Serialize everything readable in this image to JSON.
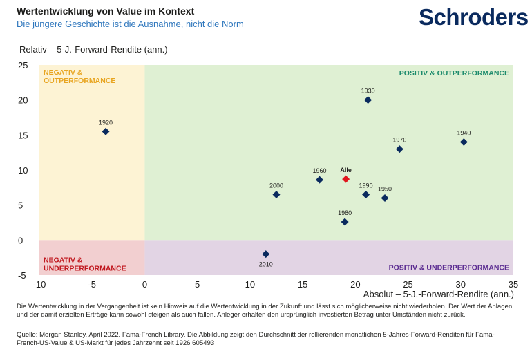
{
  "header": {
    "title": "Wertentwicklung von Value im Kontext",
    "subtitle": "Die jüngere Geschichte ist die Ausnahme, nicht die Norm",
    "brand": "Schroders"
  },
  "chart_data": {
    "type": "scatter",
    "xlabel": "Absolut – 5-J.-Forward-Rendite (ann.)",
    "ylabel": "Relativ – 5-J.-Forward-Rendite (ann.)",
    "xlim": [
      -10,
      35
    ],
    "ylim": [
      -5,
      25
    ],
    "xticks": [
      "-10",
      "-5",
      "0",
      "5",
      "10",
      "15",
      "20",
      "25",
      "30",
      "35"
    ],
    "yticks": [
      "25",
      "20",
      "15",
      "10",
      "5",
      "0",
      "-5"
    ],
    "grid": false,
    "quadrants": {
      "top_left": {
        "lines": [
          "NEGATIV &",
          "OUTPERFORMANCE"
        ],
        "fill": "#fdf3d4",
        "text_color": "#e8a521"
      },
      "top_right": {
        "lines": [
          "POSITIV & OUTPERFORMANCE"
        ],
        "fill": "#dff0d3",
        "text_color": "#1b8a6b"
      },
      "bottom_left": {
        "lines": [
          "NEGATIV &",
          "UNDERPERFORMANCE"
        ],
        "fill": "#f2cfd0",
        "text_color": "#c0161d"
      },
      "bottom_right": {
        "lines": [
          "POSITIV & UNDERPERFORMANCE"
        ],
        "fill": "#e2d4e4",
        "text_color": "#5b2c91"
      }
    },
    "points": [
      {
        "label": "1920",
        "x": -3.7,
        "y": 15.5,
        "color": "#0a2a5e"
      },
      {
        "label": "1930",
        "x": 21.2,
        "y": 20.0,
        "color": "#0a2a5e"
      },
      {
        "label": "1940",
        "x": 30.3,
        "y": 14.0,
        "color": "#0a2a5e"
      },
      {
        "label": "1950",
        "x": 22.8,
        "y": 6.0,
        "color": "#0a2a5e"
      },
      {
        "label": "1960",
        "x": 16.6,
        "y": 8.6,
        "color": "#0a2a5e"
      },
      {
        "label": "1970",
        "x": 24.2,
        "y": 13.0,
        "color": "#0a2a5e"
      },
      {
        "label": "1980",
        "x": 19.0,
        "y": 2.6,
        "color": "#0a2a5e"
      },
      {
        "label": "1990",
        "x": 21.0,
        "y": 6.5,
        "color": "#0a2a5e"
      },
      {
        "label": "2000",
        "x": 12.5,
        "y": 6.5,
        "color": "#0a2a5e"
      },
      {
        "label": "2010",
        "x": 11.5,
        "y": -2.0,
        "color": "#0a2a5e"
      },
      {
        "label": "Alle",
        "x": 19.1,
        "y": 8.7,
        "color": "#e0161d",
        "highlight": true
      }
    ]
  },
  "footer": {
    "disclaimer": "Die Wertentwicklung in der Vergangenheit ist kein Hinweis auf die Wertentwicklung in der Zukunft und lässt sich möglicherweise nicht wiederholen. Der Wert der Anlagen und der damit erzielten Erträge kann sowohl steigen als auch fallen. Anleger erhalten den ursprünglich investierten Betrag unter Umständen nicht zurück.",
    "source": "Quelle: Morgan Stanley. April 2022. Fama-French Library. Die Abbildung zeigt den Durchschnitt der rollierenden monatlichen 5-Jahres-Forward-Renditen für Fama-French-US-Value & US-Markt für jedes Jahrzehnt seit 1926 605493"
  }
}
